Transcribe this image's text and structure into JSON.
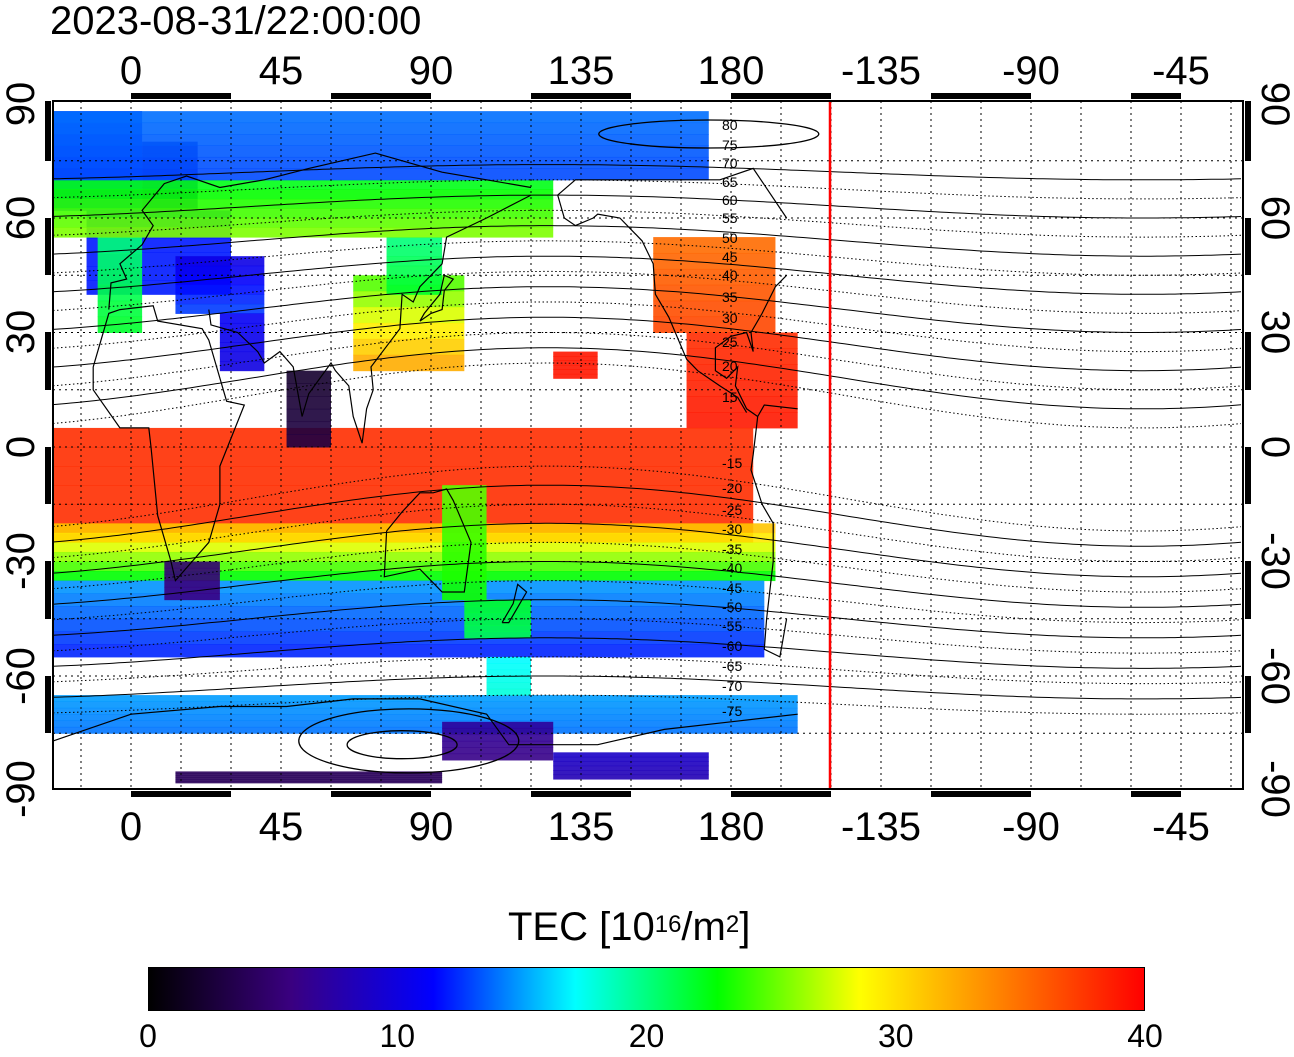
{
  "timestamp": "2023-08-31/22:00:00",
  "map": {
    "x_ticks_top": [
      "0",
      "45",
      "90",
      "135",
      "180",
      "-135",
      "-90",
      "-45"
    ],
    "x_ticks_bottom": [
      "0",
      "45",
      "90",
      "135",
      "180",
      "-135",
      "-90",
      "-45"
    ],
    "y_ticks_left": [
      "90",
      "60",
      "30",
      "0",
      "-30",
      "-60",
      "-90"
    ],
    "y_ticks_right": [
      "90",
      "60",
      "30",
      "0",
      "-30",
      "-60",
      "-90"
    ],
    "contour_labels": [
      "80",
      "75",
      "70",
      "65",
      "60",
      "55",
      "50",
      "45",
      "40",
      "35",
      "30",
      "25",
      "20",
      "15",
      "-15",
      "-20",
      "-25",
      "-30",
      "-35",
      "-40",
      "-45",
      "-50",
      "-55",
      "-60",
      "-65",
      "-70",
      "-75"
    ],
    "terminator_color": "#ff0000"
  },
  "colorbar": {
    "title_prefix": "TEC  [10",
    "title_exp1": "16",
    "title_mid": "/m",
    "title_exp2": "2",
    "title_suffix": "]",
    "min": 0,
    "max": 40,
    "ticks": [
      "0",
      "10",
      "20",
      "30",
      "40"
    ],
    "colors": [
      "#000000",
      "#3a0080",
      "#0000ff",
      "#00ffff",
      "#00ff00",
      "#ffff00",
      "#ff8000",
      "#ff0000"
    ]
  }
}
